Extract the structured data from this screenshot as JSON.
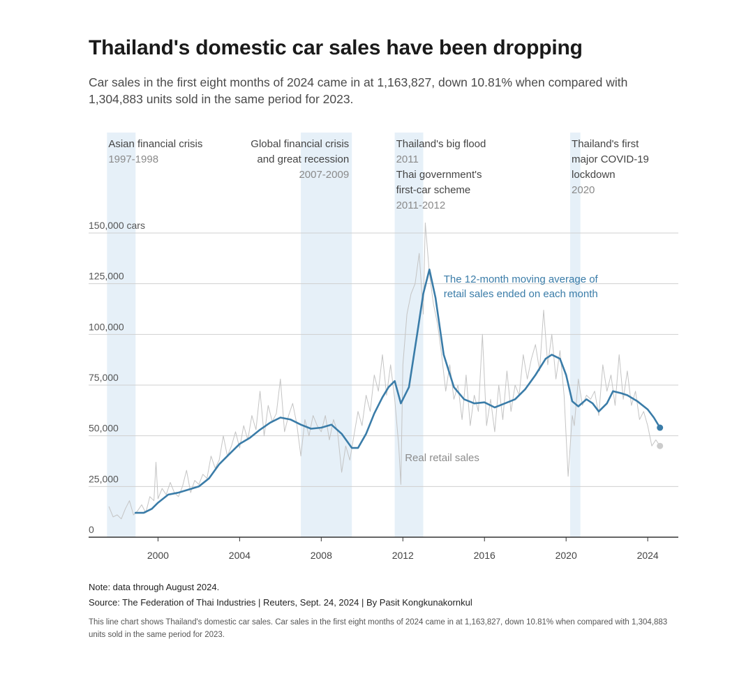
{
  "title": "Thailand's domestic car sales have been dropping",
  "subtitle": "Car sales in the first eight months of 2024 came in at 1,163,827, down 10.81% when compared with 1,304,883 units sold in the same period for 2023.",
  "note": "Note: data through August 2024.",
  "source": "Source: The Federation of Thai Industries | Reuters, Sept. 24, 2024 | By Pasit Kongkunakornkul",
  "description": "This line chart shows Thailand's domestic car sales. Car sales in the first eight months of 2024 came in at 1,163,827, down 10.81% when compared with 1,304,883 units sold in the same period for 2023.",
  "colors": {
    "moving_average": "#3a7ca8",
    "retail": "#c4c4c4",
    "shade": "#e6f0f8",
    "grid": "#cfcfcf",
    "axis": "#333333",
    "text": "#444444",
    "subtext": "#8a8a8a"
  },
  "chart_data": {
    "type": "line",
    "xlim": [
      1996.6,
      2025.5
    ],
    "ylim": [
      0,
      150000
    ],
    "y_ticks": [
      {
        "value": 0,
        "label": "0"
      },
      {
        "value": 25000,
        "label": "25,000"
      },
      {
        "value": 50000,
        "label": "50,000"
      },
      {
        "value": 75000,
        "label": "75,000"
      },
      {
        "value": 100000,
        "label": "100,000"
      },
      {
        "value": 125000,
        "label": "125,000"
      },
      {
        "value": 150000,
        "label": "150,000 cars"
      }
    ],
    "x_ticks": [
      {
        "value": 2000,
        "label": "2000"
      },
      {
        "value": 2004,
        "label": "2004"
      },
      {
        "value": 2008,
        "label": "2008"
      },
      {
        "value": 2012,
        "label": "2012"
      },
      {
        "value": 2016,
        "label": "2016"
      },
      {
        "value": 2020,
        "label": "2020"
      },
      {
        "value": 2024,
        "label": "2024"
      }
    ],
    "shaded_periods": [
      {
        "start": 1997.5,
        "end": 1998.9,
        "title_lines": [
          "Asian financial crisis"
        ],
        "years": "1997-1998",
        "align": "left"
      },
      {
        "start": 2007.0,
        "end": 2009.5,
        "title_lines": [
          "Global financial crisis",
          "and great recession"
        ],
        "years": "2007-2009",
        "align": "right"
      },
      {
        "start": 2011.6,
        "end": 2013.0,
        "title_lines": [
          "Thailand's big flood"
        ],
        "years": "2011",
        "title_lines_2": [
          "Thai government's",
          "first-car scheme"
        ],
        "years_2": "2011-2012",
        "align": "left"
      },
      {
        "start": 2020.2,
        "end": 2020.7,
        "title_lines": [
          "Thailand's first",
          "major COVID-19",
          "lockdown"
        ],
        "years": "2020",
        "align": "left"
      }
    ],
    "series": [
      {
        "name": "The 12-month moving average of retail sales ended on each month",
        "label_lines": [
          "The 12-month moving average of",
          "retail sales ended on each month"
        ],
        "style": "thick",
        "x": [
          1998.9,
          1999.3,
          1999.7,
          2000.0,
          2000.5,
          2001.0,
          2001.5,
          2002.0,
          2002.5,
          2003.0,
          2003.5,
          2004.0,
          2004.5,
          2005.0,
          2005.5,
          2006.0,
          2006.5,
          2007.0,
          2007.5,
          2008.0,
          2008.5,
          2009.0,
          2009.5,
          2009.8,
          2010.2,
          2010.6,
          2011.0,
          2011.3,
          2011.6,
          2011.9,
          2012.3,
          2012.7,
          2013.0,
          2013.3,
          2013.6,
          2014.0,
          2014.5,
          2015.0,
          2015.5,
          2016.0,
          2016.5,
          2017.0,
          2017.5,
          2018.0,
          2018.5,
          2019.0,
          2019.3,
          2019.7,
          2020.0,
          2020.3,
          2020.6,
          2021.0,
          2021.3,
          2021.6,
          2022.0,
          2022.3,
          2022.7,
          2023.0,
          2023.5,
          2024.0,
          2024.3,
          2024.6
        ],
        "values": [
          12000,
          12000,
          14000,
          17000,
          21000,
          22000,
          23500,
          25000,
          29000,
          36000,
          41000,
          46000,
          49000,
          53000,
          56500,
          59000,
          58000,
          55500,
          53500,
          54000,
          55500,
          51000,
          44000,
          44000,
          51000,
          61000,
          69000,
          74000,
          77000,
          66000,
          74000,
          100000,
          120000,
          132000,
          118000,
          90000,
          74000,
          68000,
          66000,
          66500,
          64000,
          66000,
          68000,
          73000,
          80000,
          88000,
          90000,
          88000,
          80000,
          67000,
          64500,
          68000,
          66000,
          62000,
          66000,
          72000,
          71000,
          70000,
          67000,
          63000,
          59000,
          54000
        ]
      },
      {
        "name": "Real retail sales",
        "label_lines": [
          "Real retail sales"
        ],
        "style": "thin",
        "x": [
          1997.6,
          1997.8,
          1998.0,
          1998.2,
          1998.4,
          1998.6,
          1998.8,
          1999.0,
          1999.2,
          1999.4,
          1999.6,
          1999.8,
          1999.9,
          2000.0,
          2000.2,
          2000.4,
          2000.6,
          2000.8,
          2001.0,
          2001.2,
          2001.4,
          2001.6,
          2001.8,
          2002.0,
          2002.2,
          2002.4,
          2002.6,
          2002.8,
          2003.0,
          2003.2,
          2003.4,
          2003.6,
          2003.8,
          2004.0,
          2004.2,
          2004.4,
          2004.6,
          2004.8,
          2005.0,
          2005.2,
          2005.4,
          2005.6,
          2005.8,
          2006.0,
          2006.2,
          2006.4,
          2006.6,
          2006.8,
          2007.0,
          2007.2,
          2007.4,
          2007.6,
          2007.8,
          2008.0,
          2008.2,
          2008.4,
          2008.6,
          2008.8,
          2009.0,
          2009.2,
          2009.4,
          2009.6,
          2009.8,
          2010.0,
          2010.2,
          2010.4,
          2010.6,
          2010.8,
          2011.0,
          2011.2,
          2011.4,
          2011.6,
          2011.8,
          2011.9,
          2012.0,
          2012.2,
          2012.4,
          2012.6,
          2012.8,
          2013.0,
          2013.1,
          2013.3,
          2013.5,
          2013.7,
          2013.9,
          2014.1,
          2014.3,
          2014.5,
          2014.7,
          2014.9,
          2015.1,
          2015.3,
          2015.5,
          2015.7,
          2015.9,
          2016.1,
          2016.3,
          2016.5,
          2016.7,
          2016.9,
          2017.1,
          2017.3,
          2017.5,
          2017.7,
          2017.9,
          2018.1,
          2018.3,
          2018.5,
          2018.7,
          2018.9,
          2019.1,
          2019.3,
          2019.5,
          2019.7,
          2019.9,
          2020.1,
          2020.3,
          2020.4,
          2020.6,
          2020.8,
          2021.0,
          2021.2,
          2021.4,
          2021.6,
          2021.8,
          2022.0,
          2022.2,
          2022.4,
          2022.6,
          2022.8,
          2023.0,
          2023.2,
          2023.4,
          2023.6,
          2023.8,
          2024.0,
          2024.2,
          2024.4,
          2024.6
        ],
        "values": [
          15000,
          10000,
          11000,
          9000,
          14000,
          18000,
          11000,
          13000,
          16000,
          12000,
          20000,
          18000,
          37000,
          19000,
          24000,
          21000,
          27000,
          22000,
          20000,
          25000,
          33000,
          22000,
          28000,
          26000,
          31000,
          29000,
          40000,
          34000,
          38000,
          50000,
          40000,
          45000,
          52000,
          44000,
          55000,
          48000,
          60000,
          53000,
          72000,
          50000,
          65000,
          57000,
          61000,
          78000,
          52000,
          60000,
          66000,
          56000,
          40000,
          58000,
          50000,
          60000,
          55000,
          52000,
          60000,
          48000,
          58000,
          52000,
          32000,
          45000,
          38000,
          50000,
          62000,
          55000,
          70000,
          62000,
          80000,
          72000,
          90000,
          70000,
          85000,
          68000,
          45000,
          26000,
          85000,
          110000,
          120000,
          125000,
          140000,
          110000,
          155000,
          130000,
          115000,
          105000,
          90000,
          72000,
          85000,
          68000,
          75000,
          58000,
          80000,
          55000,
          70000,
          62000,
          100000,
          55000,
          68000,
          52000,
          75000,
          58000,
          82000,
          62000,
          75000,
          70000,
          90000,
          78000,
          88000,
          95000,
          82000,
          112000,
          85000,
          100000,
          78000,
          92000,
          70000,
          30000,
          60000,
          55000,
          78000,
          65000,
          70000,
          68000,
          72000,
          60000,
          85000,
          72000,
          80000,
          65000,
          90000,
          68000,
          82000,
          65000,
          72000,
          58000,
          62000,
          55000,
          45000,
          48000,
          45000
        ]
      }
    ],
    "end_points": [
      {
        "series": "The 12-month moving average of retail sales ended on each month",
        "x": 2024.6,
        "y": 54000
      },
      {
        "series": "Real retail sales",
        "x": 2024.6,
        "y": 45000
      }
    ]
  }
}
